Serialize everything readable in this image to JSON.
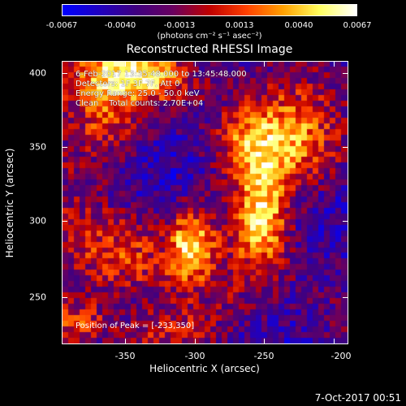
{
  "colorbar": {
    "tick_labels": [
      "-0.0067",
      "-0.0040",
      "-0.0013",
      "0.0013",
      "0.0040",
      "0.0067"
    ],
    "units": "(photons cm⁻² s⁻¹ asec⁻²)",
    "range": [
      -0.0067,
      0.0067
    ],
    "colors": [
      "#0000ff",
      "#2000c0",
      "#400080",
      "#6a0060",
      "#c00000",
      "#ff4000",
      "#ffa000",
      "#ffff60",
      "#ffffff"
    ]
  },
  "title": "Reconstructed RHESSI Image",
  "info": {
    "line1": "6-Feb-2017 13:35:48.000 to 13:45:48.000",
    "line2": "Detectors: 1F 3F 7F, Att 0",
    "line3": "Energy Range: 25.0 - 50.0 keV",
    "line4": "Clean    Total counts: 2.70E+04"
  },
  "peak": "Position of Peak = [-233,350]",
  "x_axis": {
    "label": "Heliocentric X (arcsec)",
    "ticks": [
      "-350",
      "-300",
      "-250",
      "-200"
    ],
    "range": [
      -394,
      -194
    ]
  },
  "y_axis": {
    "label": "Heliocentric Y (arcsec)",
    "ticks": [
      "250",
      "300",
      "350",
      "400"
    ],
    "range": [
      200,
      410
    ]
  },
  "timestamp": "7-Oct-2017 00:51"
}
